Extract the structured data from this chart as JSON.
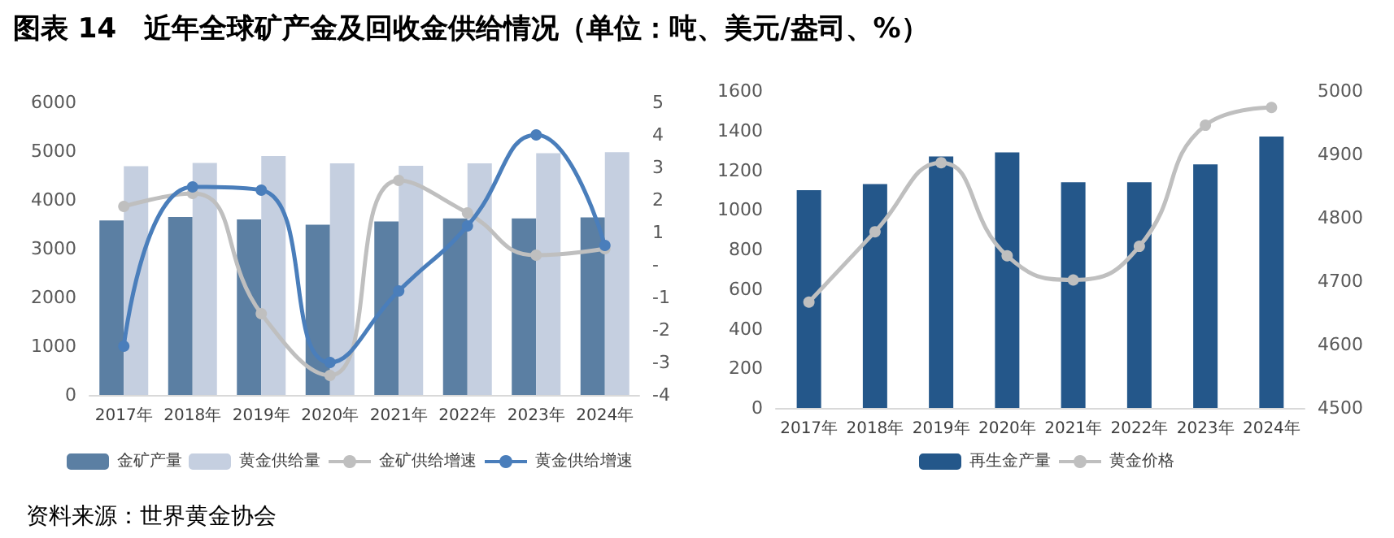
{
  "chart_data": [
    {
      "type": "bar",
      "title": "图表 14　近年全球矿产金及回收金供给情况（单位：吨、美元/盎司、%）",
      "categories": [
        "2017年",
        "2018年",
        "2019年",
        "2020年",
        "2021年",
        "2022年",
        "2023年",
        "2024年"
      ],
      "series": [
        {
          "name": "金矿产量",
          "color": "#5b7fa3",
          "values": [
            3580,
            3650,
            3600,
            3490,
            3560,
            3620,
            3620,
            3640
          ]
        },
        {
          "name": "黄金供给量",
          "color": "#c5cfe0",
          "values": [
            4690,
            4760,
            4900,
            4750,
            4700,
            4750,
            4960,
            4980
          ]
        },
        {
          "name": "金矿供给增速",
          "type": "line",
          "axis": "y2",
          "color": "#bfbfbf",
          "values": [
            1.8,
            2.2,
            -1.5,
            -3.4,
            2.6,
            1.6,
            0.3,
            0.5
          ]
        },
        {
          "name": "黄金供给增速",
          "type": "line",
          "axis": "y2",
          "color": "#4a7ebb",
          "values": [
            -2.5,
            2.4,
            2.3,
            -3.0,
            -0.8,
            1.2,
            4.0,
            0.6
          ]
        }
      ],
      "ylim": [
        0,
        6000
      ],
      "yticks": [
        0,
        1000,
        2000,
        3000,
        4000,
        5000,
        6000
      ],
      "y2lim": [
        -4,
        5
      ],
      "y2ticks": [
        -4,
        -3,
        -2,
        -1,
        {
          "value": 0,
          "label": "-"
        },
        1,
        2,
        3,
        4,
        5
      ],
      "marker": "circle",
      "grid": false,
      "legend": "bottom"
    },
    {
      "type": "bar",
      "annotations": [
        "资料来源：世界黄金协会"
      ],
      "categories": [
        "2017年",
        "2018年",
        "2019年",
        "2020年",
        "2021年",
        "2022年",
        "2023年",
        "2024年"
      ],
      "series": [
        {
          "name": "再生金产量",
          "color": "#24578a",
          "values": [
            1100,
            1130,
            1270,
            1290,
            1140,
            1140,
            1230,
            1370
          ]
        },
        {
          "name": "黄金价格",
          "type": "line",
          "axis": "y2",
          "color": "#bfbfbf",
          "values": [
            4667,
            4778,
            4887,
            4740,
            4702,
            4755,
            4946,
            4974
          ]
        }
      ],
      "ylim": [
        0,
        1600
      ],
      "yticks": [
        0,
        200,
        400,
        600,
        800,
        1000,
        1200,
        1400,
        1600
      ],
      "y2lim": [
        4500,
        5000
      ],
      "y2ticks": [
        4500,
        4600,
        4700,
        4800,
        4900,
        5000
      ],
      "marker": "circle",
      "grid": false,
      "legend": "bottom"
    }
  ]
}
